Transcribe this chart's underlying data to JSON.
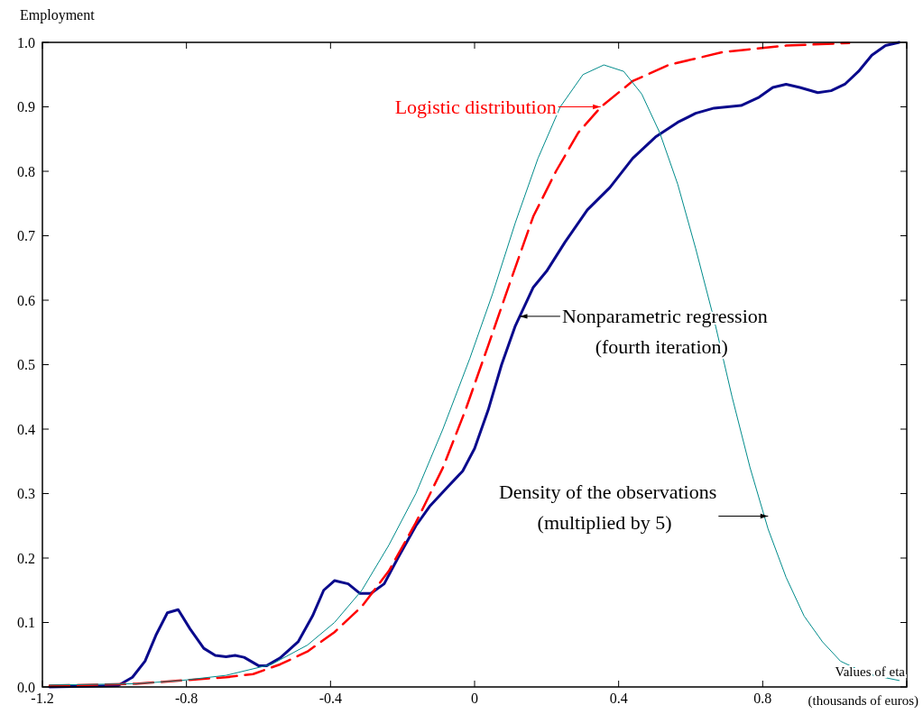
{
  "chart_data": {
    "type": "line",
    "ylabel": "Employment",
    "xlabel": "Values of eta",
    "xlim": [
      -1.2,
      1.2
    ],
    "ylim": [
      0,
      1.0
    ],
    "xticks": [
      -1.2,
      -0.8,
      -0.4,
      0,
      0.4,
      0.8,
      {
        "value": 1.2,
        "label": null
      }
    ],
    "yticks": [
      {
        "value": 0,
        "label": "0.0"
      },
      0.1,
      0.2,
      0.3,
      0.4,
      0.5,
      0.6,
      0.7,
      0.8,
      0.9,
      {
        "value": 1.0,
        "label": "1.0"
      }
    ],
    "series": [
      {
        "color": "#0a0a8c",
        "x": [
          -1.18,
          -0.99,
          -0.95,
          -0.915,
          -0.885,
          -0.853,
          -0.823,
          -0.79,
          -0.752,
          -0.72,
          -0.69,
          -0.665,
          -0.64,
          -0.6,
          -0.577,
          -0.54,
          -0.49,
          -0.45,
          -0.419,
          -0.389,
          -0.351,
          -0.318,
          -0.288,
          -0.251,
          -0.213,
          -0.163,
          -0.125,
          -0.075,
          -0.033,
          0,
          0.038,
          0.075,
          0.113,
          0.163,
          0.2,
          0.251,
          0.313,
          0.376,
          0.439,
          0.502,
          0.564,
          0.614,
          0.665,
          0.74,
          0.79,
          0.828,
          0.865,
          0.903,
          0.953,
          0.99,
          1.028,
          1.066,
          1.103,
          1.141,
          1.179
        ],
        "values": [
          0.0,
          0.002,
          0.015,
          0.04,
          0.08,
          0.115,
          0.12,
          0.09,
          0.06,
          0.049,
          0.047,
          0.049,
          0.046,
          0.033,
          0.033,
          0.045,
          0.07,
          0.11,
          0.15,
          0.165,
          0.16,
          0.145,
          0.145,
          0.16,
          0.2,
          0.25,
          0.28,
          0.31,
          0.335,
          0.37,
          0.43,
          0.5,
          0.56,
          0.62,
          0.645,
          0.69,
          0.74,
          0.775,
          0.82,
          0.853,
          0.876,
          0.89,
          0.898,
          0.902,
          0.915,
          0.93,
          0.935,
          0.93,
          0.922,
          0.925,
          0.935,
          0.955,
          0.98,
          0.995,
          1.0
        ]
      },
      {
        "color": "#ff0000",
        "line_style": "dashed",
        "x": [
          -1.18,
          -0.94,
          -0.815,
          -0.69,
          -0.615,
          -0.54,
          -0.464,
          -0.389,
          -0.313,
          -0.238,
          -0.163,
          -0.088,
          -0.025,
          0.038,
          0.1,
          0.163,
          0.226,
          0.288,
          0.351,
          0.439,
          0.539,
          0.69,
          0.865,
          1.04
        ],
        "values": [
          0.002,
          0.005,
          0.01,
          0.015,
          0.02,
          0.035,
          0.055,
          0.085,
          0.125,
          0.18,
          0.255,
          0.34,
          0.43,
          0.53,
          0.63,
          0.73,
          0.8,
          0.86,
          0.9,
          0.94,
          0.965,
          0.985,
          0.995,
          0.999
        ]
      },
      {
        "color": "#008b8b",
        "x": [
          -1.18,
          -0.94,
          -0.815,
          -0.69,
          -0.564,
          -0.464,
          -0.389,
          -0.313,
          -0.238,
          -0.163,
          -0.088,
          -0.013,
          0.05,
          0.113,
          0.176,
          0.238,
          0.301,
          0.359,
          0.414,
          0.464,
          0.514,
          0.564,
          0.614,
          0.665,
          0.715,
          0.765,
          0.815,
          0.865,
          0.915,
          0.966,
          1.016,
          1.091,
          1.179
        ],
        "values": [
          0.003,
          0.005,
          0.01,
          0.018,
          0.035,
          0.065,
          0.1,
          0.15,
          0.22,
          0.3,
          0.4,
          0.51,
          0.61,
          0.72,
          0.82,
          0.9,
          0.95,
          0.965,
          0.955,
          0.92,
          0.86,
          0.78,
          0.68,
          0.57,
          0.45,
          0.34,
          0.245,
          0.17,
          0.11,
          0.07,
          0.04,
          0.02,
          0.01
        ]
      }
    ],
    "annotations": [
      {
        "text": "Nonparametric regression\n(fourth iteration)",
        "x": 0.125,
        "y": 0.575
      },
      {
        "text": "Logistic distribution",
        "x": 0.35,
        "y": 0.9
      },
      {
        "text": "Density of the observations\n(multiplied by 5)",
        "x": 0.815,
        "y": 0.265
      },
      "(thousands of euros)"
    ]
  }
}
